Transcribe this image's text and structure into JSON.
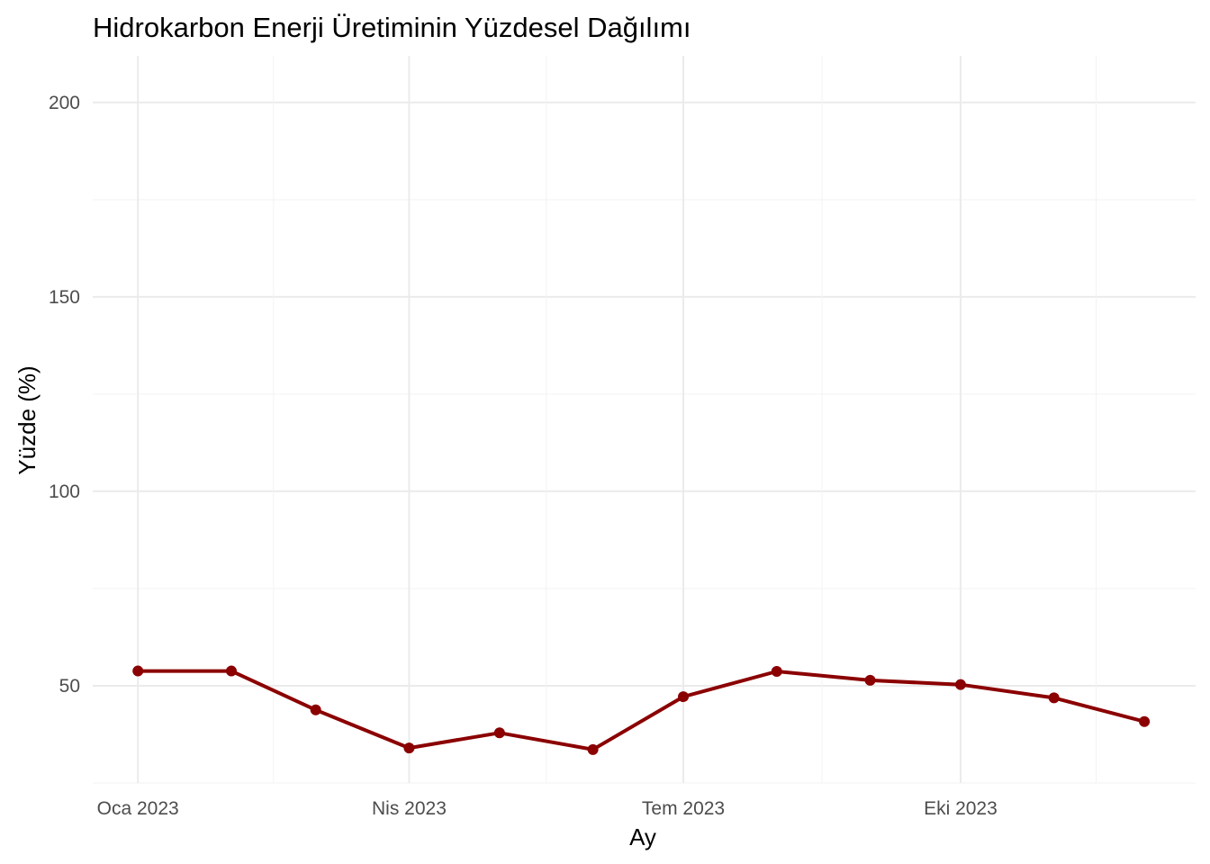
{
  "chart_data": {
    "type": "line",
    "title": "Hidrokarbon Enerji Üretiminin Yüzdesel Dağılımı",
    "xlabel": "Ay",
    "ylabel": "Yüzde (%)",
    "x": [
      "2023-01-01",
      "2023-02-01",
      "2023-03-01",
      "2023-04-01",
      "2023-05-01",
      "2023-06-01",
      "2023-07-01",
      "2023-08-01",
      "2023-09-01",
      "2023-10-01",
      "2023-11-01",
      "2023-12-01"
    ],
    "x_ticks": [
      {
        "date": "2023-01-01",
        "label": "Oca 2023"
      },
      {
        "date": "2023-04-01",
        "label": "Nis 2023"
      },
      {
        "date": "2023-07-01",
        "label": "Tem 2023"
      },
      {
        "date": "2023-10-01",
        "label": "Eki 2023"
      }
    ],
    "xlim": [
      "2022-12-17",
      "2023-12-18"
    ],
    "y_ticks": [
      50,
      100,
      150,
      200
    ],
    "ylim": [
      25,
      212
    ],
    "grid": true,
    "series": [
      {
        "values": [
          53.8,
          53.8,
          43.8,
          34.0,
          37.9,
          33.6,
          47.2,
          53.7,
          51.4,
          50.3,
          46.9,
          40.8
        ],
        "color": "#8b0000"
      }
    ]
  }
}
